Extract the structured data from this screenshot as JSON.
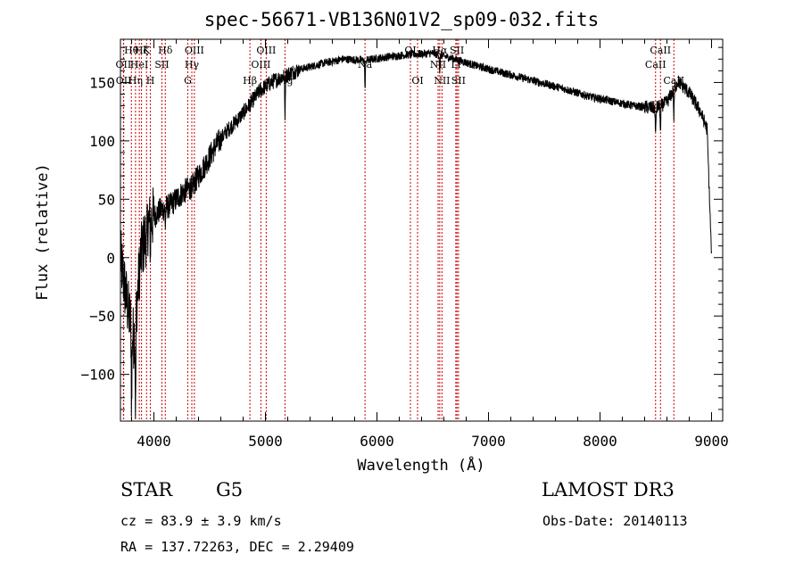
{
  "chart_data": {
    "type": "line",
    "title": "spec-56671-VB136N01V2_sp09-032.fits",
    "xlabel": "Wavelength (Å)",
    "ylabel": "Flux (relative)",
    "xlim": [
      3700,
      9100
    ],
    "ylim": [
      -140,
      187
    ],
    "xticks": [
      4000,
      5000,
      6000,
      7000,
      8000,
      9000
    ],
    "yticks": [
      -100,
      -50,
      0,
      50,
      100,
      150
    ],
    "grid": false,
    "continuum": [
      [
        3700,
        0
      ],
      [
        3760,
        -40
      ],
      [
        3820,
        -70
      ],
      [
        3880,
        0
      ],
      [
        3950,
        30
      ],
      [
        4050,
        40
      ],
      [
        4150,
        45
      ],
      [
        4250,
        55
      ],
      [
        4350,
        62
      ],
      [
        4450,
        78
      ],
      [
        4550,
        95
      ],
      [
        4650,
        108
      ],
      [
        4750,
        118
      ],
      [
        4850,
        130
      ],
      [
        4950,
        143
      ],
      [
        5050,
        150
      ],
      [
        5150,
        155
      ],
      [
        5300,
        161
      ],
      [
        5500,
        166
      ],
      [
        5700,
        170
      ],
      [
        5900,
        169
      ],
      [
        6100,
        172
      ],
      [
        6300,
        174
      ],
      [
        6500,
        175
      ],
      [
        6700,
        170
      ],
      [
        6900,
        164
      ],
      [
        7100,
        159
      ],
      [
        7300,
        154
      ],
      [
        7500,
        149
      ],
      [
        7700,
        144
      ],
      [
        7900,
        138
      ],
      [
        8100,
        134
      ],
      [
        8300,
        130
      ],
      [
        8500,
        128
      ],
      [
        8600,
        133
      ],
      [
        8700,
        151
      ],
      [
        8800,
        141
      ],
      [
        8900,
        125
      ],
      [
        8960,
        110
      ],
      [
        9000,
        0
      ]
    ],
    "absorption_dips": [
      {
        "center": 3800,
        "depth": 70
      },
      {
        "center": 3835,
        "depth": 90
      },
      {
        "center": 3934,
        "depth": 20
      },
      {
        "center": 3968,
        "depth": 20
      },
      {
        "center": 4102,
        "depth": 15
      },
      {
        "center": 4340,
        "depth": 15
      },
      {
        "center": 5175,
        "depth": 35
      },
      {
        "center": 5893,
        "depth": 25
      },
      {
        "center": 6563,
        "depth": 15
      },
      {
        "center": 8498,
        "depth": 25
      },
      {
        "center": 8542,
        "depth": 25
      },
      {
        "center": 8662,
        "depth": 25
      }
    ],
    "lines": [
      {
        "w": 3727,
        "label": "OII",
        "row": 2
      },
      {
        "w": 3729,
        "label": "OII",
        "row": 3
      },
      {
        "w": 3798,
        "label": "Hθ",
        "row": 1
      },
      {
        "w": 3835,
        "label": "Hη",
        "row": 3
      },
      {
        "w": 3869,
        "label": "HeI",
        "row": 2
      },
      {
        "w": 3889,
        "label": "Hζ",
        "row": 1
      },
      {
        "w": 3934,
        "label": "K",
        "row": 1
      },
      {
        "w": 3968,
        "label": "H",
        "row": 3
      },
      {
        "w": 4072,
        "label": "SII",
        "row": 2
      },
      {
        "w": 4102,
        "label": "Hδ",
        "row": 1
      },
      {
        "w": 4304,
        "label": "G",
        "row": 3
      },
      {
        "w": 4340,
        "label": "Hγ",
        "row": 2
      },
      {
        "w": 4363,
        "label": "OIII",
        "row": 1
      },
      {
        "w": 4861,
        "label": "Hβ",
        "row": 3
      },
      {
        "w": 4959,
        "label": "OIII",
        "row": 2
      },
      {
        "w": 5007,
        "label": "OIII",
        "row": 1
      },
      {
        "w": 5175,
        "label": "Mg",
        "row": 3
      },
      {
        "w": 5893,
        "label": "Na",
        "row": 2
      },
      {
        "w": 6300,
        "label": "OI",
        "row": 1
      },
      {
        "w": 6364,
        "label": "OI",
        "row": 3
      },
      {
        "w": 6548,
        "label": "NII",
        "row": 2
      },
      {
        "w": 6563,
        "label": "Hα",
        "row": 1
      },
      {
        "w": 6583,
        "label": "NII",
        "row": 3
      },
      {
        "w": 6707,
        "label": "Li",
        "row": 2
      },
      {
        "w": 6717,
        "label": "SII",
        "row": 1
      },
      {
        "w": 6731,
        "label": "SII",
        "row": 3
      },
      {
        "w": 8498,
        "label": "CaII",
        "row": 2
      },
      {
        "w": 8542,
        "label": "CaII",
        "row": 1
      },
      {
        "w": 8662,
        "label": "CaII",
        "row": 3
      }
    ],
    "colors": {
      "spectrum": "#000000",
      "line_marker": "#cc0000",
      "axes": "#000000"
    }
  },
  "info": {
    "class": "STAR",
    "subclass": "G5",
    "survey": "LAMOST DR3",
    "cz": "cz = 83.9 ± 3.9 km/s",
    "obs_date": "Obs-Date: 20140113",
    "coords": "RA = 137.72263, DEC =   2.29409"
  }
}
